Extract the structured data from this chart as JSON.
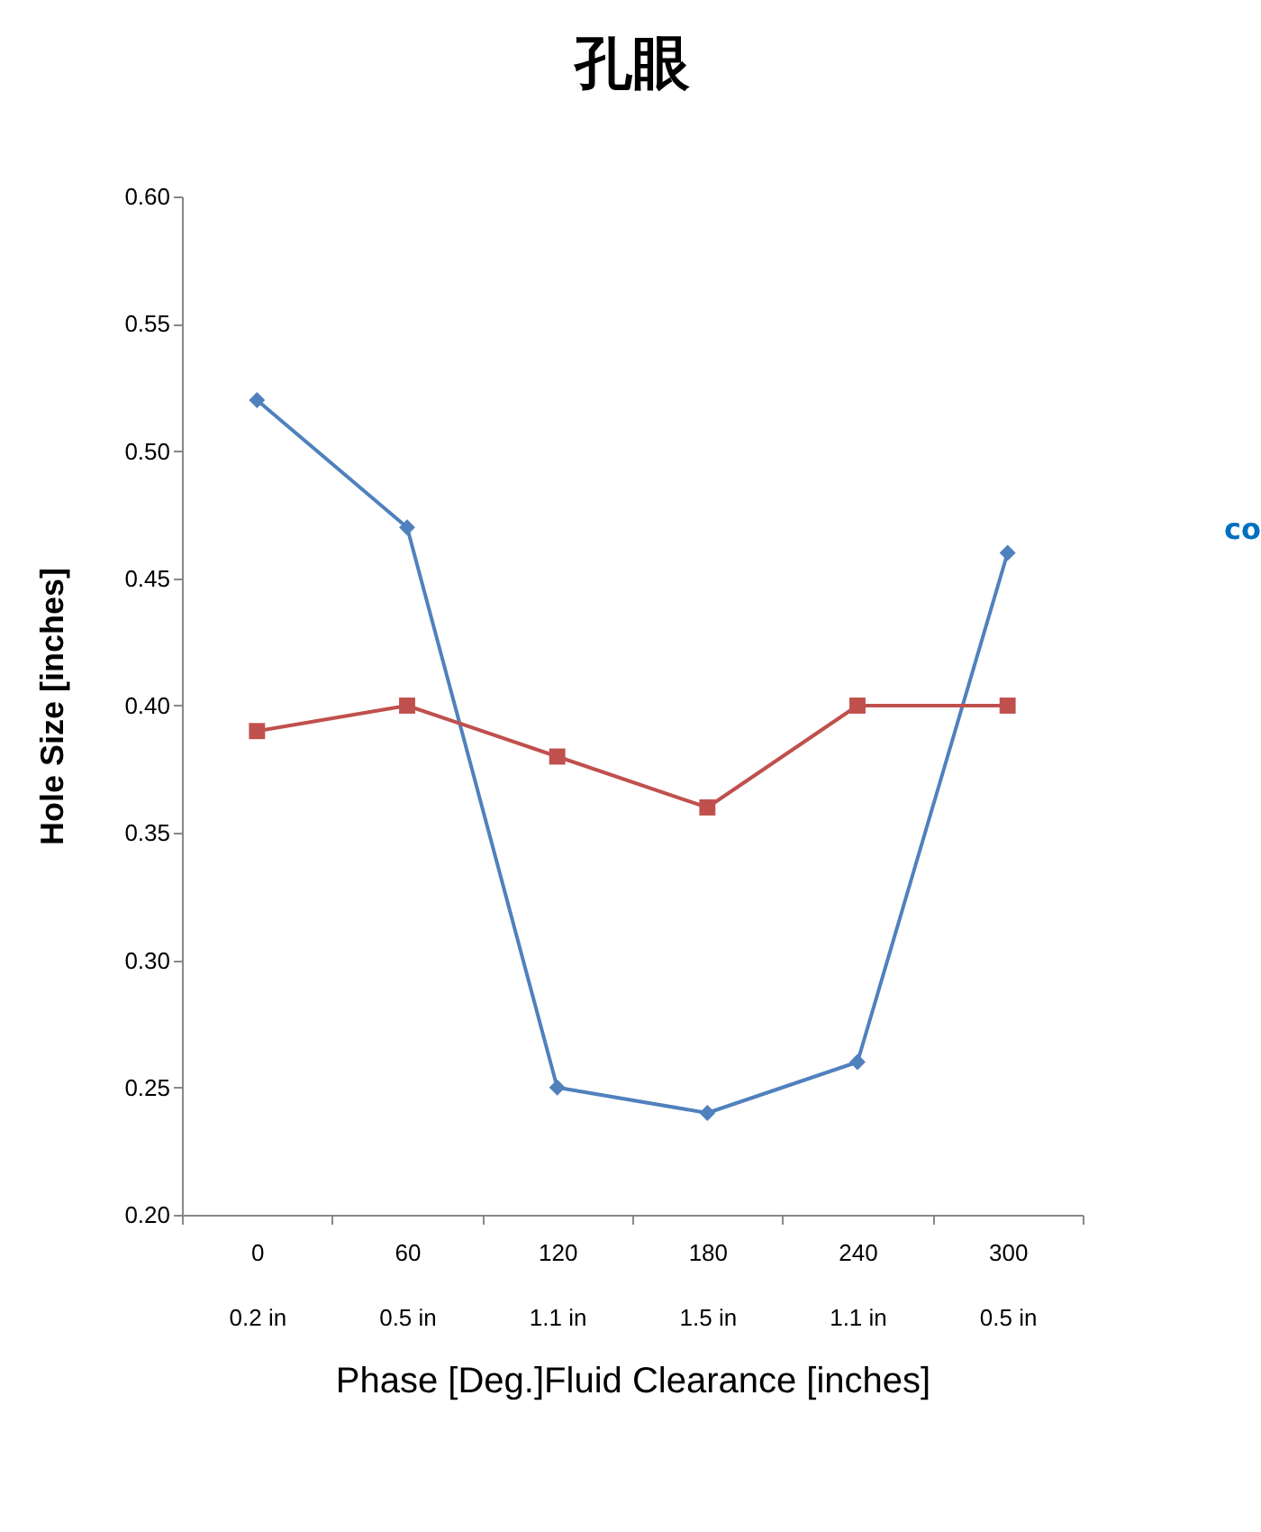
{
  "chart_data": {
    "type": "line",
    "title": "孔眼",
    "xlabel": "Phase [Deg.]Fluid Clearance [inches]",
    "ylabel": "Hole Size [inches]",
    "categories": [
      "0\n0.2 in",
      "60\n0.5 in",
      "120\n1.1 in",
      "180\n1.5 in",
      "240\n1.1 in",
      "300\n0.5 in"
    ],
    "series": [
      {
        "color": "#4f81bd",
        "marker": "diamond",
        "values": [
          0.52,
          0.47,
          0.25,
          0.24,
          0.26,
          0.46
        ]
      },
      {
        "color": "#c0504d",
        "marker": "square",
        "values": [
          0.39,
          0.4,
          0.38,
          0.36,
          0.4,
          0.4
        ]
      }
    ],
    "ylim": [
      0.2,
      0.6
    ],
    "yticks": [
      {
        "value": 0.2,
        "label": "0.20"
      },
      {
        "value": 0.25,
        "label": "0.25"
      },
      {
        "value": 0.3,
        "label": "0.30"
      },
      {
        "value": 0.35,
        "label": "0.35"
      },
      {
        "value": 0.4,
        "label": "0.40"
      },
      {
        "value": 0.45,
        "label": "0.45"
      },
      {
        "value": 0.5,
        "label": "0.50"
      },
      {
        "value": 0.55,
        "label": "0.55"
      },
      {
        "value": 0.6,
        "label": "0.60"
      }
    ],
    "grid": false,
    "line_style": "solid",
    "annotations": [
      "co"
    ]
  }
}
